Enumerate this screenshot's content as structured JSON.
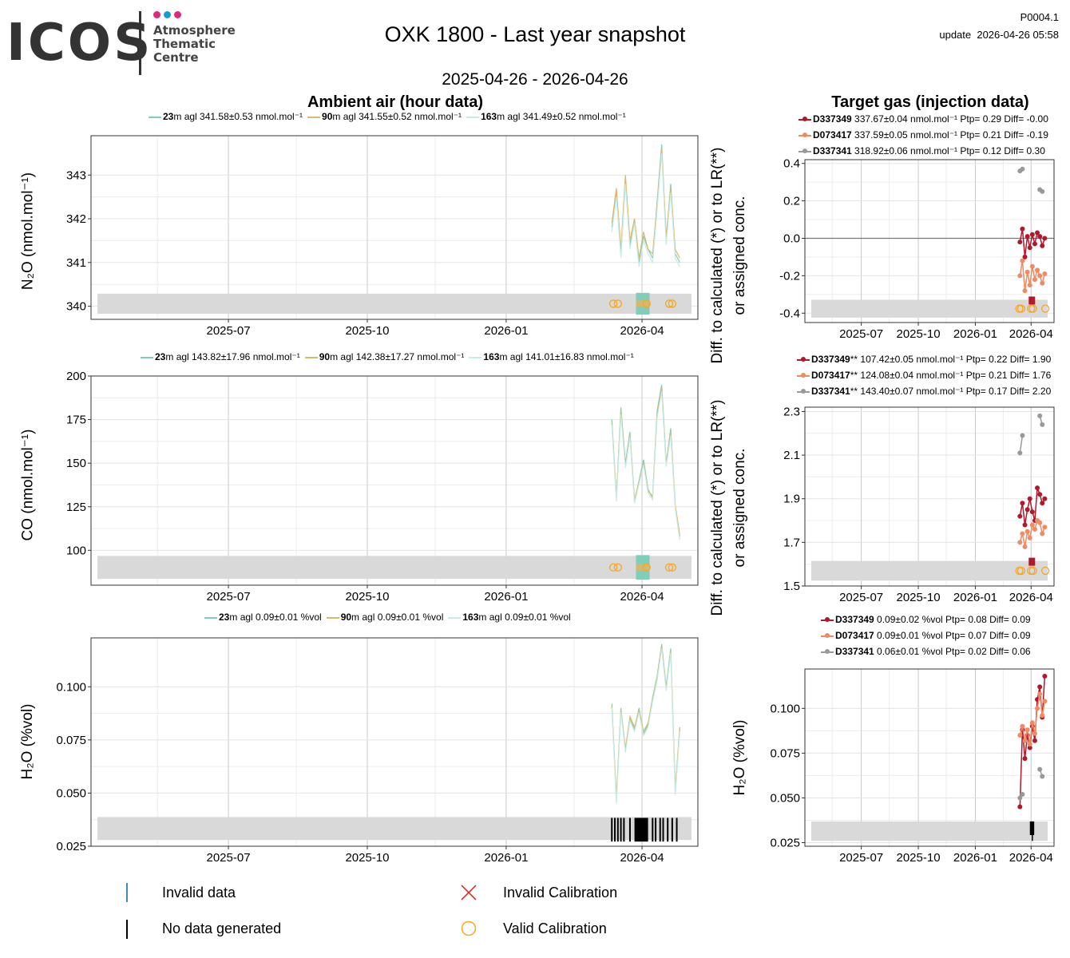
{
  "header": {
    "logo_text": "ICOS",
    "logo_sub": [
      "Atmosphere",
      "Thematic",
      "Centre"
    ],
    "title": "OXK 1800 - Last year snapshot",
    "subtitle": "2025-04-26 - 2026-04-26",
    "product_id": "P0004.1",
    "update": "update  2026-04-26 05:58"
  },
  "colors": {
    "h23": "#7fcdbb",
    "h90": "#d9b86a",
    "h163": "#c7ece6",
    "D337349": "#b2182b",
    "D073417": "#ef8a62",
    "D337341": "#999999",
    "band": "#d9d9d9",
    "valid_cal": "#f5a623",
    "invalid_cal": "#e41a1c"
  },
  "sections": {
    "left_title": "Ambient air (hour data)",
    "right_title": "Target gas (injection data)"
  },
  "legends": {
    "n2o_amb": [
      {
        "height": "23",
        "text": "m agl 341.58±0.53 nmol.mol⁻¹"
      },
      {
        "height": "90",
        "text": "m agl 341.55±0.52 nmol.mol⁻¹"
      },
      {
        "height": "163",
        "text": "m agl 341.49±0.52 nmol.mol⁻¹"
      }
    ],
    "co_amb": [
      {
        "height": "23",
        "text": "m agl 143.82±17.96 nmol.mol⁻¹"
      },
      {
        "height": "90",
        "text": "m agl 142.38±17.27 nmol.mol⁻¹"
      },
      {
        "height": "163",
        "text": "m agl 141.01±16.83 nmol.mol⁻¹"
      }
    ],
    "h2o_amb": [
      {
        "height": "23",
        "text": "m agl 0.09±0.01 %vol"
      },
      {
        "height": "90",
        "text": "m agl 0.09±0.01 %vol"
      },
      {
        "height": "163",
        "text": "m agl 0.09±0.01 %vol"
      }
    ],
    "n2o_tgt": [
      {
        "id": "D337349",
        "text": " 337.67±0.04 nmol.mol⁻¹ Ptp= 0.29 Diff= -0.00"
      },
      {
        "id": "D073417",
        "text": " 337.59±0.05 nmol.mol⁻¹ Ptp= 0.21 Diff= -0.19"
      },
      {
        "id": "D337341",
        "text": " 318.92±0.06 nmol.mol⁻¹ Ptp= 0.12 Diff= 0.30"
      }
    ],
    "co_tgt": [
      {
        "id": "D337349",
        "text": "** 107.42±0.05 nmol.mol⁻¹ Ptp= 0.22 Diff= 1.90"
      },
      {
        "id": "D073417",
        "text": "** 124.08±0.04 nmol.mol⁻¹ Ptp= 0.21 Diff= 1.76"
      },
      {
        "id": "D337341",
        "text": "** 143.40±0.07 nmol.mol⁻¹ Ptp= 0.17 Diff= 2.20"
      }
    ],
    "h2o_tgt": [
      {
        "id": "D337349",
        "text": " 0.09±0.02 %vol Ptp= 0.08 Diff= 0.09"
      },
      {
        "id": "D073417",
        "text": " 0.09±0.01 %vol Ptp= 0.07 Diff= 0.09"
      },
      {
        "id": "D337341",
        "text": " 0.06±0.01 %vol Ptp= 0.02 Diff= 0.06"
      }
    ]
  },
  "y_labels": {
    "n2o": "N₂O (nmol.mol⁻¹)",
    "co": "CO (nmol.mol⁻¹)",
    "h2o": "H₂O (%vol)",
    "diff_line1": "Diff. to calculated (*) or to LR(**)",
    "diff_line2": "or assigned conc."
  },
  "key": {
    "invalid_data": "Invalid data",
    "no_data": "No data generated",
    "invalid_cal": "Invalid Calibration",
    "valid_cal": "Valid Calibration"
  },
  "chart_data": [
    {
      "id": "n2o_ambient",
      "type": "line",
      "x_ticks": [
        "2025-07",
        "2025-10",
        "2026-01",
        "2026-04"
      ],
      "ylabel": "N₂O (nmol.mol⁻¹)",
      "ylim": [
        339.7,
        343.9
      ],
      "yticks": [
        340,
        341,
        342,
        343
      ],
      "x": [
        "2026-03-12",
        "2026-03-15",
        "2026-03-18",
        "2026-03-21",
        "2026-03-24",
        "2026-03-27",
        "2026-03-30",
        "2026-04-02",
        "2026-04-05",
        "2026-04-08",
        "2026-04-11",
        "2026-04-14",
        "2026-04-17",
        "2026-04-20",
        "2026-04-23",
        "2026-04-26"
      ],
      "series": [
        {
          "name": "23m agl",
          "color": "#7fcdbb",
          "values": [
            341.8,
            342.6,
            341.2,
            342.9,
            341.4,
            342.0,
            341.0,
            341.6,
            341.3,
            341.1,
            342.4,
            343.7,
            341.5,
            342.8,
            341.2,
            341.0
          ]
        },
        {
          "name": "90m agl",
          "color": "#d9b86a",
          "values": [
            341.9,
            342.7,
            341.3,
            343.0,
            341.5,
            342.0,
            341.1,
            341.7,
            341.3,
            341.2,
            342.3,
            343.6,
            341.6,
            342.7,
            341.3,
            341.1
          ]
        },
        {
          "name": "163m agl",
          "color": "#c7ece6",
          "values": [
            341.7,
            342.5,
            341.1,
            342.8,
            341.3,
            341.9,
            340.9,
            341.5,
            341.2,
            341.0,
            342.2,
            343.5,
            341.4,
            342.6,
            341.1,
            340.9
          ]
        }
      ]
    },
    {
      "id": "co_ambient",
      "type": "line",
      "x_ticks": [
        "2025-07",
        "2025-10",
        "2026-01",
        "2026-04"
      ],
      "ylabel": "CO (nmol.mol⁻¹)",
      "ylim": [
        80,
        200
      ],
      "yticks": [
        100,
        125,
        150,
        175,
        200
      ],
      "x": [
        "2026-03-12",
        "2026-03-15",
        "2026-03-18",
        "2026-03-21",
        "2026-03-24",
        "2026-03-27",
        "2026-03-30",
        "2026-04-02",
        "2026-04-05",
        "2026-04-08",
        "2026-04-11",
        "2026-04-14",
        "2026-04-17",
        "2026-04-20",
        "2026-04-23",
        "2026-04-26"
      ],
      "series": [
        {
          "name": "23m agl",
          "color": "#7fcdbb",
          "values": [
            175,
            130,
            182,
            150,
            168,
            128,
            140,
            152,
            135,
            130,
            180,
            195,
            150,
            170,
            125,
            108
          ]
        },
        {
          "name": "90m agl",
          "color": "#d9b86a",
          "values": [
            173,
            131,
            180,
            148,
            166,
            129,
            139,
            150,
            134,
            131,
            178,
            193,
            149,
            168,
            126,
            109
          ]
        },
        {
          "name": "163m agl",
          "color": "#c7ece6",
          "values": [
            172,
            128,
            178,
            147,
            165,
            127,
            138,
            149,
            133,
            129,
            176,
            191,
            148,
            166,
            124,
            106
          ]
        }
      ]
    },
    {
      "id": "h2o_ambient",
      "type": "line",
      "x_ticks": [
        "2025-07",
        "2025-10",
        "2026-01",
        "2026-04"
      ],
      "ylabel": "H₂O (%vol)",
      "ylim": [
        0.025,
        0.123
      ],
      "yticks": [
        0.025,
        0.05,
        0.075,
        0.1
      ],
      "x": [
        "2026-03-12",
        "2026-03-15",
        "2026-03-18",
        "2026-03-21",
        "2026-03-24",
        "2026-03-27",
        "2026-03-30",
        "2026-04-02",
        "2026-04-05",
        "2026-04-08",
        "2026-04-11",
        "2026-04-14",
        "2026-04-17",
        "2026-04-20",
        "2026-04-23",
        "2026-04-26"
      ],
      "series": [
        {
          "name": "23m agl",
          "color": "#7fcdbb",
          "values": [
            0.092,
            0.046,
            0.09,
            0.07,
            0.085,
            0.08,
            0.09,
            0.078,
            0.082,
            0.095,
            0.105,
            0.12,
            0.1,
            0.118,
            0.05,
            0.08
          ]
        },
        {
          "name": "90m agl",
          "color": "#d9b86a",
          "values": [
            0.091,
            0.048,
            0.089,
            0.071,
            0.086,
            0.081,
            0.089,
            0.079,
            0.083,
            0.094,
            0.104,
            0.119,
            0.099,
            0.117,
            0.052,
            0.081
          ]
        },
        {
          "name": "163m agl",
          "color": "#c7ece6",
          "values": [
            0.09,
            0.045,
            0.088,
            0.069,
            0.084,
            0.079,
            0.088,
            0.077,
            0.081,
            0.093,
            0.103,
            0.118,
            0.098,
            0.116,
            0.049,
            0.079
          ]
        }
      ]
    },
    {
      "id": "n2o_target",
      "type": "scatter",
      "x_ticks": [
        "2025-07",
        "2025-10",
        "2026-01",
        "2026-04"
      ],
      "ylim": [
        -0.45,
        0.42
      ],
      "yticks": [
        -0.4,
        -0.2,
        0.0,
        0.2,
        0.4
      ],
      "x": [
        "2026-03-14",
        "2026-03-18",
        "2026-03-22",
        "2026-03-26",
        "2026-03-30",
        "2026-04-03",
        "2026-04-07",
        "2026-04-11",
        "2026-04-15",
        "2026-04-19",
        "2026-04-23"
      ],
      "series": [
        {
          "name": "D337349",
          "color": "#b2182b",
          "values": [
            -0.02,
            0.05,
            -0.1,
            0.01,
            -0.05,
            0.02,
            -0.03,
            0.03,
            0.01,
            -0.04,
            0.0
          ]
        },
        {
          "name": "D073417",
          "color": "#ef8a62",
          "values": [
            -0.2,
            -0.12,
            -0.28,
            -0.18,
            -0.25,
            -0.15,
            -0.22,
            -0.17,
            -0.2,
            -0.24,
            -0.19
          ]
        },
        {
          "name": "D337341",
          "color": "#999999",
          "values": [
            0.36,
            0.37,
            null,
            null,
            null,
            null,
            null,
            null,
            0.26,
            0.25,
            null
          ]
        }
      ]
    },
    {
      "id": "co_target",
      "type": "scatter",
      "x_ticks": [
        "2025-07",
        "2025-10",
        "2026-01",
        "2026-04"
      ],
      "ylim": [
        1.5,
        2.32
      ],
      "yticks": [
        1.5,
        1.7,
        1.9,
        2.1,
        2.3
      ],
      "x": [
        "2026-03-14",
        "2026-03-18",
        "2026-03-22",
        "2026-03-26",
        "2026-03-30",
        "2026-04-03",
        "2026-04-07",
        "2026-04-11",
        "2026-04-15",
        "2026-04-19",
        "2026-04-23"
      ],
      "series": [
        {
          "name": "D337349",
          "color": "#b2182b",
          "values": [
            1.82,
            1.88,
            1.78,
            1.85,
            1.9,
            1.84,
            1.8,
            1.95,
            1.92,
            1.88,
            1.9
          ]
        },
        {
          "name": "D073417",
          "color": "#ef8a62",
          "values": [
            1.7,
            1.74,
            1.68,
            1.75,
            1.72,
            1.78,
            1.76,
            1.8,
            1.79,
            1.74,
            1.77
          ]
        },
        {
          "name": "D337341",
          "color": "#999999",
          "values": [
            2.11,
            2.19,
            null,
            null,
            null,
            null,
            null,
            null,
            2.28,
            2.24,
            null
          ]
        }
      ]
    },
    {
      "id": "h2o_target",
      "type": "scatter",
      "x_ticks": [
        "2025-07",
        "2025-10",
        "2026-01",
        "2026-04"
      ],
      "ylabel": "H₂O (%vol)",
      "ylim": [
        0.023,
        0.122
      ],
      "yticks": [
        0.025,
        0.05,
        0.075,
        0.1
      ],
      "x": [
        "2026-03-14",
        "2026-03-18",
        "2026-03-22",
        "2026-03-26",
        "2026-03-30",
        "2026-04-03",
        "2026-04-07",
        "2026-04-11",
        "2026-04-15",
        "2026-04-19",
        "2026-04-23"
      ],
      "series": [
        {
          "name": "D337349",
          "color": "#b2182b",
          "values": [
            0.045,
            0.088,
            0.072,
            0.085,
            0.078,
            0.09,
            0.082,
            0.105,
            0.112,
            0.095,
            0.118
          ]
        },
        {
          "name": "D073417",
          "color": "#ef8a62",
          "values": [
            0.085,
            0.09,
            0.082,
            0.088,
            0.08,
            0.092,
            0.086,
            0.1,
            0.108,
            0.096,
            0.104
          ]
        },
        {
          "name": "D337341",
          "color": "#999999",
          "values": [
            0.05,
            0.052,
            null,
            null,
            null,
            null,
            null,
            null,
            0.066,
            0.062,
            null
          ]
        }
      ]
    }
  ]
}
